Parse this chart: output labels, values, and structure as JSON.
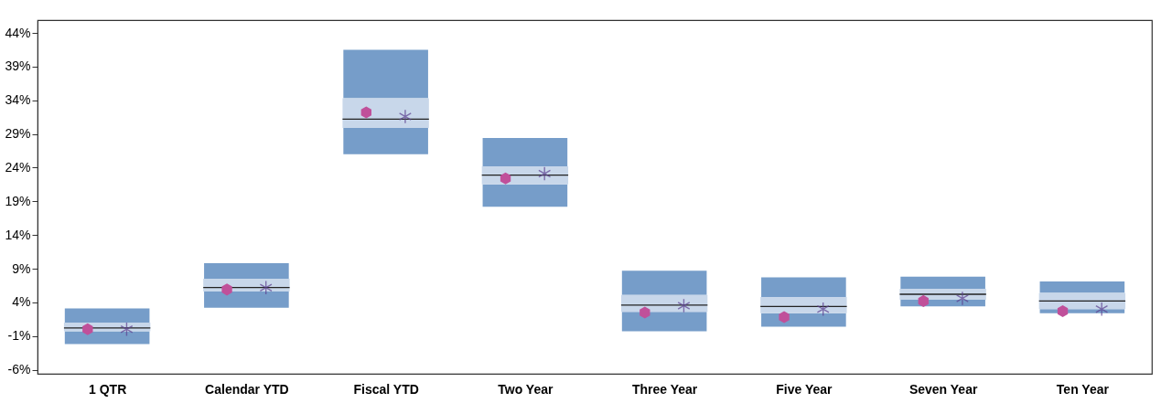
{
  "chart_data": {
    "type": "box",
    "categories": [
      "1 QTR",
      "Calendar YTD",
      "Fiscal YTD",
      "Two Year",
      "Three Year",
      "Five Year",
      "Seven Year",
      "Ten Year"
    ],
    "series": [
      {
        "color": "#c8d7ea",
        "boxes": [
          {
            "low": -2.2,
            "q1": -0.3,
            "median": 0.2,
            "q3": 1.0,
            "high": 3.1
          },
          {
            "low": 3.2,
            "q1": 5.6,
            "median": 6.2,
            "q3": 7.5,
            "high": 9.8
          },
          {
            "low": 26.0,
            "q1": 29.9,
            "median": 31.2,
            "q3": 34.3,
            "high": 41.5
          },
          {
            "low": 18.2,
            "q1": 21.5,
            "median": 22.9,
            "q3": 24.2,
            "high": 28.4
          },
          {
            "low": -0.3,
            "q1": 2.6,
            "median": 3.6,
            "q3": 5.1,
            "high": 8.7
          },
          {
            "low": 0.4,
            "q1": 2.4,
            "median": 3.4,
            "q3": 4.8,
            "high": 7.7
          },
          {
            "low": 3.4,
            "q1": 4.4,
            "median": 5.2,
            "q3": 6.0,
            "high": 7.8
          },
          {
            "low": 2.4,
            "q1": 3.0,
            "median": 4.2,
            "q3": 5.4,
            "high": 7.1
          }
        ]
      },
      {
        "type": "scatter",
        "marker": "circle",
        "color": "#c0509a",
        "x": [
          "1 QTR",
          "Calendar YTD",
          "Fiscal YTD",
          "Two Year",
          "Three Year",
          "Five Year",
          "Seven Year",
          "Ten Year"
        ],
        "values": [
          0.0,
          5.9,
          32.2,
          22.4,
          2.5,
          1.8,
          4.2,
          2.7
        ]
      },
      {
        "type": "scatter",
        "marker": "cross",
        "color": "#5b3f8f",
        "x": [
          "1 QTR",
          "Calendar YTD",
          "Fiscal YTD",
          "Two Year",
          "Three Year",
          "Five Year",
          "Seven Year",
          "Ten Year"
        ],
        "values": [
          0.0,
          6.2,
          31.6,
          23.1,
          3.5,
          3.0,
          4.6,
          3.0
        ]
      }
    ],
    "ylim": [
      -6.6,
      45.9
    ],
    "yticks": [
      {
        "value": -6,
        "label": "-6%"
      },
      {
        "value": -1,
        "label": "-1%"
      },
      {
        "value": 4,
        "label": "4%"
      },
      {
        "value": 9,
        "label": "9%"
      },
      {
        "value": 14,
        "label": "14%"
      },
      {
        "value": 19,
        "label": "19%"
      },
      {
        "value": 24,
        "label": "24%"
      },
      {
        "value": 29,
        "label": "29%"
      },
      {
        "value": 34,
        "label": "34%"
      },
      {
        "value": 39,
        "label": "39%"
      },
      {
        "value": 44,
        "label": "44%"
      }
    ],
    "grid": false
  }
}
